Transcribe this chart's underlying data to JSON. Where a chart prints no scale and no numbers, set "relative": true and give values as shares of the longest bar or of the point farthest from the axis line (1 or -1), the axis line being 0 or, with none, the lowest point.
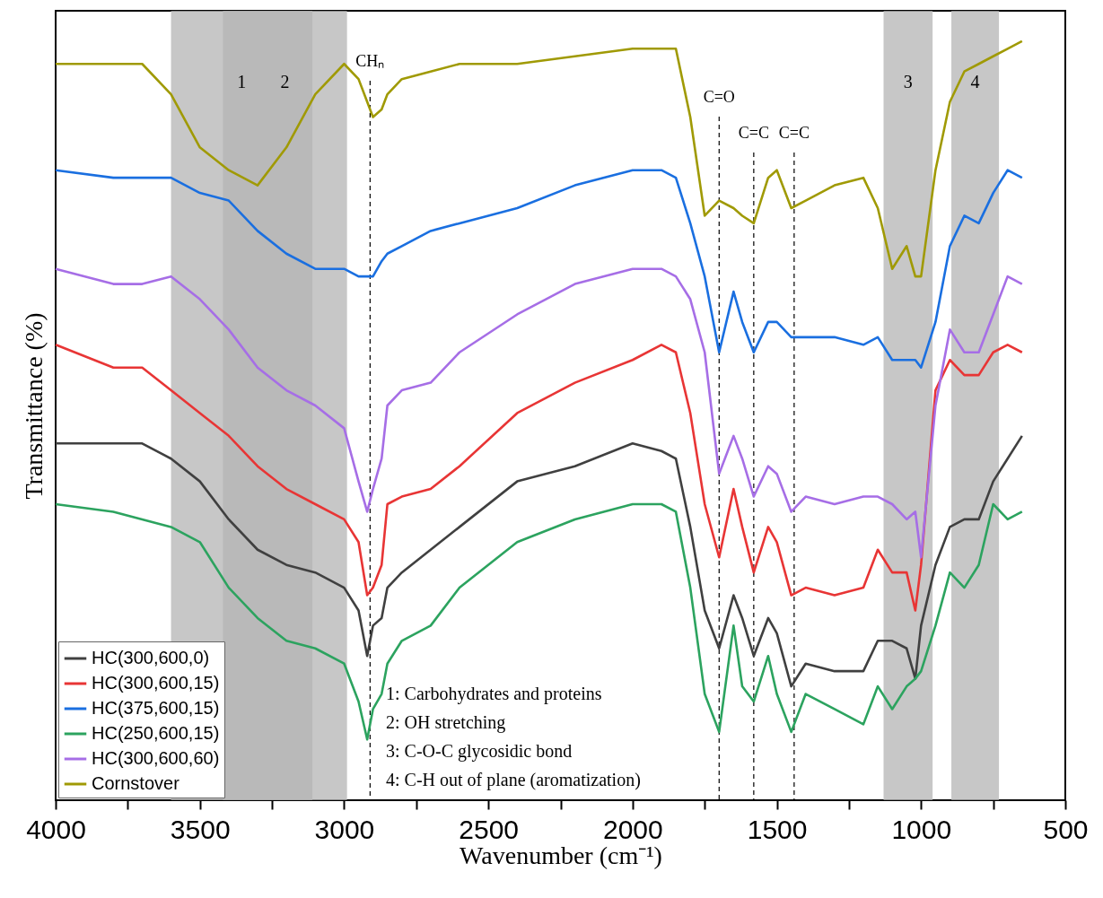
{
  "chart_data": {
    "type": "line",
    "xlabel": "Wavenumber (cm⁻¹)",
    "ylabel": "Transmittance (%)",
    "relative": true,
    "x": [
      4000,
      3800,
      3700,
      3600,
      3500,
      3400,
      3300,
      3200,
      3100,
      3000,
      2950,
      2920,
      2900,
      2870,
      2850,
      2800,
      2700,
      2600,
      2400,
      2200,
      2000,
      1900,
      1850,
      1800,
      1750,
      1700,
      1650,
      1620,
      1580,
      1530,
      1500,
      1450,
      1400,
      1300,
      1200,
      1150,
      1100,
      1050,
      1020,
      1000,
      950,
      900,
      850,
      800,
      750,
      700,
      650
    ],
    "series": [
      {
        "name": "HC(300,600,0)",
        "color": "#404040",
        "values": [
          0.47,
          0.47,
          0.47,
          0.45,
          0.42,
          0.37,
          0.33,
          0.31,
          0.3,
          0.28,
          0.25,
          0.19,
          0.23,
          0.24,
          0.28,
          0.3,
          0.33,
          0.36,
          0.42,
          0.44,
          0.47,
          0.46,
          0.45,
          0.36,
          0.25,
          0.2,
          0.27,
          0.24,
          0.19,
          0.24,
          0.22,
          0.15,
          0.18,
          0.17,
          0.17,
          0.21,
          0.21,
          0.2,
          0.16,
          0.23,
          0.31,
          0.36,
          0.37,
          0.37,
          0.42,
          0.45,
          0.48
        ]
      },
      {
        "name": "HC(300,600,15)",
        "color": "#e83535",
        "values": [
          0.6,
          0.57,
          0.57,
          0.54,
          0.51,
          0.48,
          0.44,
          0.41,
          0.39,
          0.37,
          0.34,
          0.27,
          0.28,
          0.31,
          0.39,
          0.4,
          0.41,
          0.44,
          0.51,
          0.55,
          0.58,
          0.6,
          0.59,
          0.51,
          0.39,
          0.32,
          0.41,
          0.36,
          0.3,
          0.36,
          0.34,
          0.27,
          0.28,
          0.27,
          0.28,
          0.33,
          0.3,
          0.3,
          0.25,
          0.31,
          0.54,
          0.58,
          0.56,
          0.56,
          0.59,
          0.6,
          0.59
        ]
      },
      {
        "name": "HC(375,600,15)",
        "color": "#1a6fe0",
        "values": [
          0.83,
          0.82,
          0.82,
          0.82,
          0.8,
          0.79,
          0.75,
          0.72,
          0.7,
          0.7,
          0.69,
          0.69,
          0.69,
          0.71,
          0.72,
          0.73,
          0.75,
          0.76,
          0.78,
          0.81,
          0.83,
          0.83,
          0.82,
          0.76,
          0.69,
          0.59,
          0.67,
          0.63,
          0.59,
          0.63,
          0.63,
          0.61,
          0.61,
          0.61,
          0.6,
          0.61,
          0.58,
          0.58,
          0.58,
          0.57,
          0.63,
          0.73,
          0.77,
          0.76,
          0.8,
          0.83,
          0.82
        ]
      },
      {
        "name": "HC(250,600,15)",
        "color": "#2ca35f",
        "values": [
          0.39,
          0.38,
          0.37,
          0.36,
          0.34,
          0.28,
          0.24,
          0.21,
          0.2,
          0.18,
          0.13,
          0.08,
          0.12,
          0.14,
          0.18,
          0.21,
          0.23,
          0.28,
          0.34,
          0.37,
          0.39,
          0.39,
          0.38,
          0.28,
          0.14,
          0.09,
          0.23,
          0.15,
          0.13,
          0.19,
          0.14,
          0.09,
          0.14,
          0.12,
          0.1,
          0.15,
          0.12,
          0.15,
          0.16,
          0.17,
          0.23,
          0.3,
          0.28,
          0.31,
          0.39,
          0.37,
          0.38
        ]
      },
      {
        "name": "HC(300,600,60)",
        "color": "#a66ee6",
        "values": [
          0.7,
          0.68,
          0.68,
          0.69,
          0.66,
          0.62,
          0.57,
          0.54,
          0.52,
          0.49,
          0.42,
          0.38,
          0.41,
          0.45,
          0.52,
          0.54,
          0.55,
          0.59,
          0.64,
          0.68,
          0.7,
          0.7,
          0.69,
          0.66,
          0.59,
          0.43,
          0.48,
          0.45,
          0.4,
          0.44,
          0.43,
          0.38,
          0.4,
          0.39,
          0.4,
          0.4,
          0.39,
          0.37,
          0.38,
          0.32,
          0.52,
          0.62,
          0.59,
          0.59,
          0.64,
          0.69,
          0.68
        ]
      },
      {
        "name": "Cornstover",
        "color": "#a09a05",
        "values": [
          0.97,
          0.97,
          0.97,
          0.93,
          0.86,
          0.83,
          0.81,
          0.86,
          0.93,
          0.97,
          0.95,
          0.92,
          0.9,
          0.91,
          0.93,
          0.95,
          0.96,
          0.97,
          0.97,
          0.98,
          0.99,
          0.99,
          0.99,
          0.9,
          0.77,
          0.79,
          0.78,
          0.77,
          0.76,
          0.82,
          0.83,
          0.78,
          0.79,
          0.81,
          0.82,
          0.78,
          0.7,
          0.73,
          0.69,
          0.69,
          0.83,
          0.92,
          0.96,
          0.97,
          0.98,
          0.99,
          1.0
        ]
      }
    ],
    "xlim": [
      4000,
      500
    ],
    "xticks": [
      4000,
      {
        "value": 3750,
        "label": null
      },
      3500,
      {
        "value": 3250,
        "label": null
      },
      3000,
      {
        "value": 2750,
        "label": null
      },
      2500,
      {
        "value": 2250,
        "label": null
      },
      2000,
      {
        "value": 1750,
        "label": null
      },
      1500,
      {
        "value": 1250,
        "label": null
      },
      1000,
      {
        "value": 750,
        "label": null
      },
      500
    ],
    "bands": [
      {
        "axis": "x",
        "from": 3600,
        "to": 3110,
        "label": "1",
        "color": "#b4b4b4"
      },
      {
        "axis": "x",
        "from": 3420,
        "to": 2990,
        "label": "2",
        "color": "#b4b4b4"
      },
      {
        "axis": "x",
        "from": 1130,
        "to": 960,
        "label": "3",
        "color": "#b4b4b4"
      },
      {
        "axis": "x",
        "from": 895,
        "to": 730,
        "label": "4",
        "color": "#b4b4b4"
      }
    ],
    "ref_lines": [
      {
        "axis": "x",
        "value": 2910,
        "label": "CHₙ",
        "line_style": "dashed",
        "color": "#000000"
      },
      {
        "axis": "x",
        "value": 1700,
        "label": "C=O",
        "line_style": "dashed",
        "color": "#000000"
      },
      {
        "axis": "x",
        "value": 1580,
        "label": "C=C",
        "line_style": "dashed",
        "color": "#000000"
      },
      {
        "axis": "x",
        "value": 1440,
        "label": "C=C",
        "line_style": "dashed",
        "color": "#000000"
      }
    ],
    "annotations": [
      "1: Carbohydrates and proteins",
      "2: OH stretching",
      "3: C-O-C glycosidic bond",
      "4: C-H out of plane (aromatization)"
    ],
    "legend": "bottom left"
  }
}
